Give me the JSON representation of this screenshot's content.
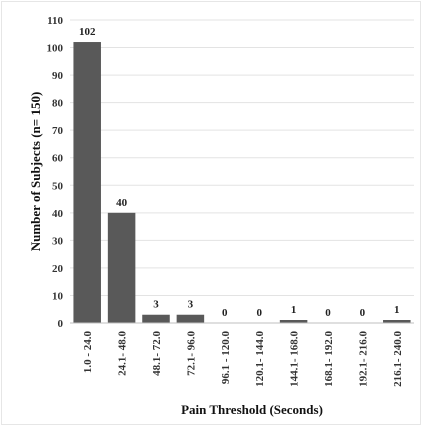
{
  "chart_data": {
    "type": "bar",
    "title": "",
    "xlabel": "Pain Threshold (Seconds)",
    "ylabel": "Number of Subjects  (n= 150)",
    "categories": [
      "1.0 - 24.0",
      "24.1- 48.0",
      "48.1- 72.0",
      "72.1- 96.0",
      "96.1 - 120.0",
      "120.1- 144.0",
      "144.1- 168.0",
      "168.1- 192.0",
      "192.1- 216.0",
      "216.1- 240.0"
    ],
    "values": [
      102,
      40,
      3,
      3,
      0,
      0,
      1,
      0,
      0,
      1
    ],
    "ylim": [
      0,
      110
    ],
    "yticks": [
      0,
      10,
      20,
      30,
      40,
      50,
      60,
      70,
      80,
      90,
      100,
      110
    ],
    "grid": true,
    "legend": "none",
    "bar_color": "#595959"
  }
}
